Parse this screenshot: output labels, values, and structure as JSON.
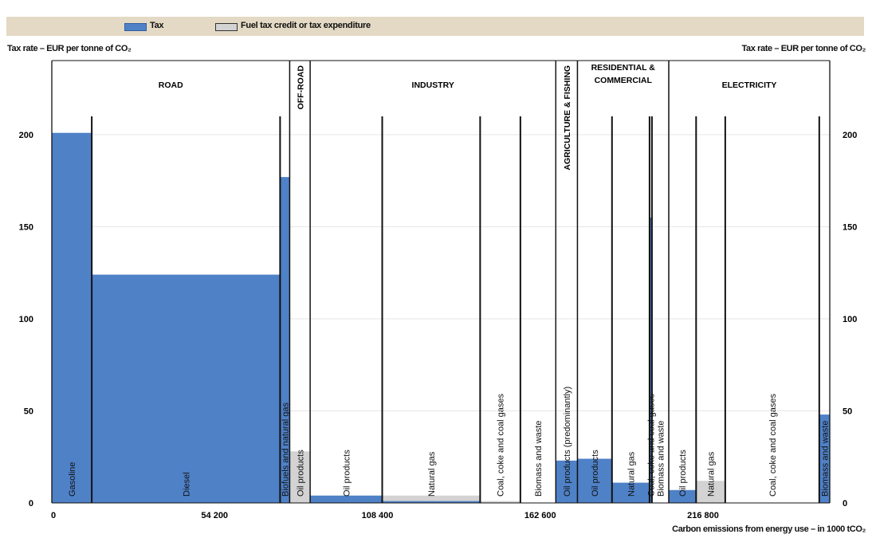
{
  "legend": {
    "tax_label": "Tax",
    "credit_label": "Fuel tax credit or tax expenditure",
    "tax_color": "#4f81c7",
    "credit_color": "#d3d3d3"
  },
  "axes": {
    "y_title_left": "Tax rate – EUR per tonne of CO₂",
    "y_title_right": "Tax rate – EUR per tonne of CO₂",
    "x_title": "Carbon emissions from energy use – in 1000 tCO₂"
  },
  "chart_data": {
    "type": "bar",
    "ylim": [
      0,
      230
    ],
    "xlim": [
      0,
      259000
    ],
    "y_ticks": [
      0,
      50,
      100,
      150,
      200
    ],
    "x_ticks": [
      {
        "value": 0,
        "label": "0"
      },
      {
        "value": 54200,
        "label": "54 200"
      },
      {
        "value": 108400,
        "label": "108 400"
      },
      {
        "value": 162600,
        "label": "162 600"
      },
      {
        "value": 216800,
        "label": "216 800"
      }
    ],
    "sectors": [
      {
        "name": "ROAD",
        "start": 0,
        "end": 79200
      },
      {
        "name": "OFF-ROAD",
        "start": 79200,
        "end": 86000,
        "vertical": true
      },
      {
        "name": "INDUSTRY",
        "start": 86000,
        "end": 167800
      },
      {
        "name": "AGRICULTURE & FISHING",
        "start": 167800,
        "end": 175000,
        "vertical": true
      },
      {
        "name": "RESIDENTIAL & COMMERCIAL",
        "start": 175000,
        "end": 205400
      },
      {
        "name": "ELECTRICITY",
        "start": 205400,
        "end": 259000
      }
    ],
    "segments": [
      {
        "sector": "ROAD",
        "label": "Gasoline",
        "start": 0,
        "end": 13300,
        "tax": 201,
        "credit": 0
      },
      {
        "sector": "ROAD",
        "label": "Diesel",
        "start": 13300,
        "end": 76000,
        "tax": 124,
        "credit": 0
      },
      {
        "sector": "ROAD",
        "label": "Biofuels and natural gas",
        "start": 76000,
        "end": 79200,
        "tax": 177,
        "credit": 0
      },
      {
        "sector": "OFF-ROAD",
        "label": "Oil products",
        "start": 79200,
        "end": 86000,
        "tax": 0,
        "credit": 28
      },
      {
        "sector": "INDUSTRY",
        "label": "Oil products",
        "start": 86000,
        "end": 110000,
        "tax": 4,
        "credit": 0
      },
      {
        "sector": "INDUSTRY",
        "label": "Natural gas",
        "start": 110000,
        "end": 142600,
        "tax": 1,
        "credit": 4
      },
      {
        "sector": "INDUSTRY",
        "label": "Coal, coke and coal gases",
        "start": 142600,
        "end": 156000,
        "tax": 0,
        "credit": 1
      },
      {
        "sector": "INDUSTRY",
        "label": "Biomass and waste",
        "start": 156000,
        "end": 167800,
        "tax": 0,
        "credit": 0
      },
      {
        "sector": "AGRICULTURE & FISHING",
        "label": "Oil products (predominantly)",
        "start": 167800,
        "end": 175000,
        "tax": 23,
        "credit": 0
      },
      {
        "sector": "RESIDENTIAL & COMMERCIAL",
        "label": "Oil products",
        "start": 175000,
        "end": 186500,
        "tax": 24,
        "credit": 0
      },
      {
        "sector": "RESIDENTIAL & COMMERCIAL",
        "label": "Natural gas",
        "start": 186500,
        "end": 199000,
        "tax": 11,
        "credit": 0
      },
      {
        "sector": "RESIDENTIAL & COMMERCIAL",
        "label": "Coal, coke and coal gases",
        "start": 199000,
        "end": 199800,
        "tax": 155,
        "credit": 0
      },
      {
        "sector": "RESIDENTIAL & COMMERCIAL",
        "label": "Biomass and waste",
        "start": 199800,
        "end": 205400,
        "tax": 0,
        "credit": 0
      },
      {
        "sector": "ELECTRICITY",
        "label": "Oil products",
        "start": 205400,
        "end": 214500,
        "tax": 7,
        "credit": 0
      },
      {
        "sector": "ELECTRICITY",
        "label": "Natural gas",
        "start": 214500,
        "end": 224200,
        "tax": 0,
        "credit": 12
      },
      {
        "sector": "ELECTRICITY",
        "label": "Coal, coke and coal gases",
        "start": 224200,
        "end": 255500,
        "tax": 0,
        "credit": 0
      },
      {
        "sector": "ELECTRICITY",
        "label": "Biomass and waste",
        "start": 255500,
        "end": 259000,
        "tax": 48,
        "credit": 0
      }
    ]
  }
}
